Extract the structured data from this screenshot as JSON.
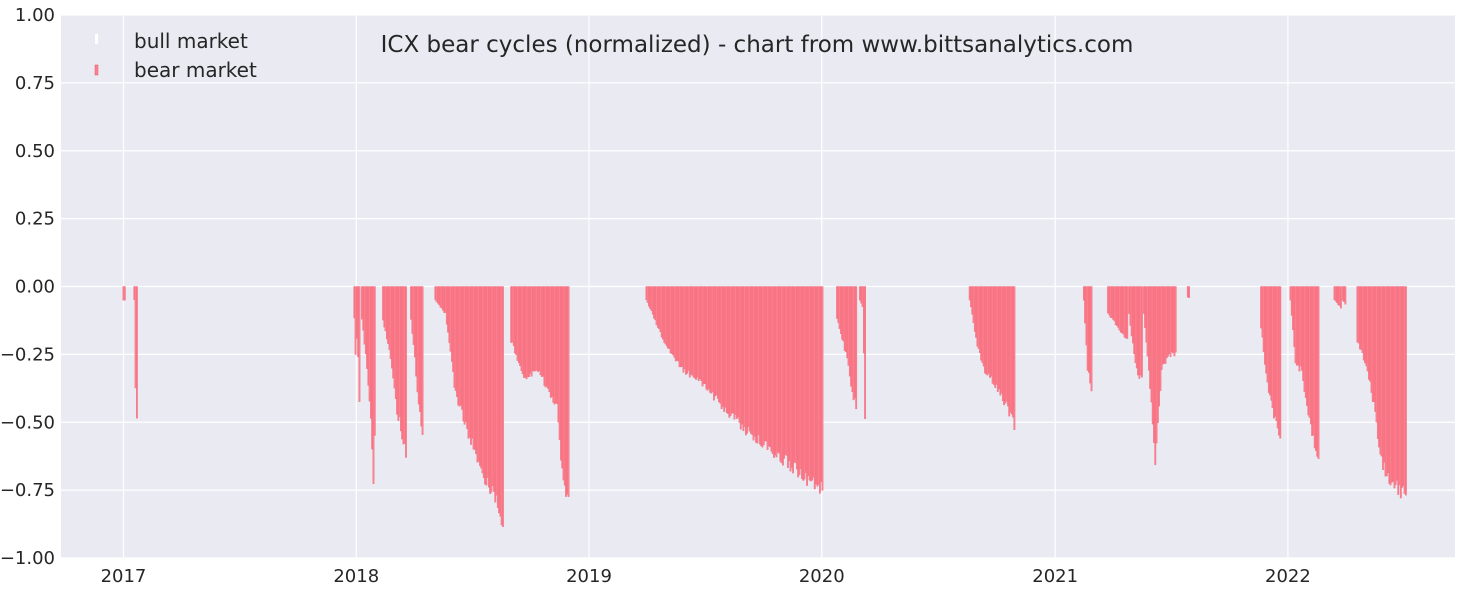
{
  "chart_data": {
    "type": "bar",
    "title": "ICX bear cycles (normalized)  - chart from www.bittsanalytics.com",
    "xlabel": "",
    "ylabel": "",
    "x_axis_type": "date",
    "xlim": [
      "2016-09-25",
      "2022-09-20"
    ],
    "ylim": [
      -1.0,
      1.0
    ],
    "y_ticks": [
      -1.0,
      -0.75,
      -0.5,
      -0.25,
      0.0,
      0.25,
      0.5,
      0.75,
      1.0
    ],
    "y_tick_labels": [
      "−1.00",
      "−0.75",
      "−0.50",
      "−0.25",
      "0.00",
      "0.25",
      "0.50",
      "0.75",
      "1.00"
    ],
    "x_ticks": [
      "2017-01-01",
      "2018-01-01",
      "2019-01-01",
      "2020-01-01",
      "2021-01-01",
      "2022-01-01"
    ],
    "x_tick_labels": [
      "2017",
      "2018",
      "2019",
      "2020",
      "2021",
      "2022"
    ],
    "grid": true,
    "legend_position": "top-left",
    "background": "#eaeaf2",
    "series": [
      {
        "name": "bull market",
        "color": "#ffffff",
        "values": [],
        "segments": []
      },
      {
        "name": "bear market",
        "color": "#ff7f8e",
        "edge_color": "#e05a6c",
        "segments": [
          {
            "start": "2017-01-01",
            "end": "2017-01-03",
            "points": [
              [
                0.0,
                -0.05
              ],
              [
                1.0,
                -0.05
              ]
            ]
          },
          {
            "start": "2017-01-18",
            "end": "2017-01-22",
            "points": [
              [
                0.0,
                -0.05
              ],
              [
                0.3,
                -0.3
              ],
              [
                0.7,
                -0.42
              ],
              [
                1.0,
                -0.47
              ]
            ]
          },
          {
            "start": "2017-12-29",
            "end": "2018-01-06",
            "points": [
              [
                0.0,
                -0.12
              ],
              [
                0.3,
                -0.28
              ],
              [
                0.6,
                -0.15
              ],
              [
                1.0,
                -0.42
              ]
            ]
          },
          {
            "start": "2018-01-10",
            "end": "2018-01-31",
            "points": [
              [
                0.0,
                -0.12
              ],
              [
                0.4,
                -0.3
              ],
              [
                0.7,
                -0.5
              ],
              [
                0.85,
                -0.72
              ],
              [
                1.0,
                -0.5
              ]
            ]
          },
          {
            "start": "2018-02-12",
            "end": "2018-03-20",
            "points": [
              [
                0.0,
                -0.12
              ],
              [
                0.3,
                -0.25
              ],
              [
                0.6,
                -0.45
              ],
              [
                0.85,
                -0.55
              ],
              [
                1.0,
                -0.63
              ]
            ]
          },
          {
            "start": "2018-03-28",
            "end": "2018-04-15",
            "points": [
              [
                0.0,
                -0.12
              ],
              [
                0.4,
                -0.3
              ],
              [
                0.7,
                -0.45
              ],
              [
                1.0,
                -0.55
              ]
            ]
          },
          {
            "start": "2018-05-05",
            "end": "2018-08-20",
            "points": [
              [
                0.0,
                -0.05
              ],
              [
                0.15,
                -0.1
              ],
              [
                0.3,
                -0.4
              ],
              [
                0.5,
                -0.55
              ],
              [
                0.7,
                -0.7
              ],
              [
                0.85,
                -0.75
              ],
              [
                0.95,
                -0.85
              ],
              [
                1.0,
                -0.9
              ]
            ]
          },
          {
            "start": "2018-09-01",
            "end": "2018-11-30",
            "points": [
              [
                0.0,
                -0.2
              ],
              [
                0.25,
                -0.35
              ],
              [
                0.45,
                -0.3
              ],
              [
                0.65,
                -0.38
              ],
              [
                0.8,
                -0.45
              ],
              [
                0.9,
                -0.72
              ],
              [
                1.0,
                -0.8
              ]
            ]
          },
          {
            "start": "2019-04-01",
            "end": "2020-01-02",
            "points": [
              [
                0.0,
                -0.05
              ],
              [
                0.1,
                -0.2
              ],
              [
                0.2,
                -0.3
              ],
              [
                0.3,
                -0.35
              ],
              [
                0.45,
                -0.45
              ],
              [
                0.6,
                -0.55
              ],
              [
                0.75,
                -0.62
              ],
              [
                0.9,
                -0.7
              ],
              [
                1.0,
                -0.75
              ]
            ]
          },
          {
            "start": "2020-01-25",
            "end": "2020-02-25",
            "points": [
              [
                0.0,
                -0.12
              ],
              [
                0.3,
                -0.2
              ],
              [
                0.6,
                -0.3
              ],
              [
                0.8,
                -0.4
              ],
              [
                1.0,
                -0.45
              ]
            ]
          },
          {
            "start": "2020-03-01",
            "end": "2020-03-10",
            "points": [
              [
                0.0,
                -0.05
              ],
              [
                0.5,
                -0.08
              ],
              [
                1.0,
                -0.58
              ]
            ]
          },
          {
            "start": "2020-08-20",
            "end": "2020-10-30",
            "points": [
              [
                0.0,
                -0.05
              ],
              [
                0.15,
                -0.2
              ],
              [
                0.3,
                -0.3
              ],
              [
                0.5,
                -0.35
              ],
              [
                0.7,
                -0.4
              ],
              [
                0.85,
                -0.45
              ],
              [
                1.0,
                -0.52
              ]
            ]
          },
          {
            "start": "2021-02-15",
            "end": "2021-02-27",
            "points": [
              [
                0.0,
                -0.05
              ],
              [
                0.5,
                -0.3
              ],
              [
                1.0,
                -0.38
              ]
            ]
          },
          {
            "start": "2021-03-25",
            "end": "2021-04-25",
            "points": [
              [
                0.0,
                -0.1
              ],
              [
                0.5,
                -0.15
              ],
              [
                1.0,
                -0.2
              ]
            ]
          },
          {
            "start": "2021-04-27",
            "end": "2021-05-18",
            "points": [
              [
                0.0,
                -0.1
              ],
              [
                0.5,
                -0.3
              ],
              [
                1.0,
                -0.35
              ]
            ]
          },
          {
            "start": "2021-05-20",
            "end": "2021-07-10",
            "points": [
              [
                0.0,
                -0.1
              ],
              [
                0.25,
                -0.45
              ],
              [
                0.35,
                -0.65
              ],
              [
                0.55,
                -0.3
              ],
              [
                0.8,
                -0.25
              ],
              [
                1.0,
                -0.25
              ]
            ]
          },
          {
            "start": "2021-07-28",
            "end": "2021-07-30",
            "points": [
              [
                0.0,
                -0.04
              ],
              [
                1.0,
                -0.04
              ]
            ]
          },
          {
            "start": "2021-11-20",
            "end": "2021-12-20",
            "points": [
              [
                0.0,
                -0.15
              ],
              [
                0.3,
                -0.35
              ],
              [
                0.6,
                -0.45
              ],
              [
                1.0,
                -0.57
              ]
            ]
          },
          {
            "start": "2022-01-05",
            "end": "2022-02-18",
            "points": [
              [
                0.0,
                -0.05
              ],
              [
                0.2,
                -0.3
              ],
              [
                0.4,
                -0.3
              ],
              [
                0.6,
                -0.45
              ],
              [
                0.8,
                -0.55
              ],
              [
                1.0,
                -0.62
              ]
            ]
          },
          {
            "start": "2022-03-15",
            "end": "2022-03-25",
            "points": [
              [
                0.0,
                -0.05
              ],
              [
                1.0,
                -0.08
              ]
            ]
          },
          {
            "start": "2022-03-28",
            "end": "2022-04-02",
            "points": [
              [
                0.0,
                -0.05
              ],
              [
                1.0,
                -0.07
              ]
            ]
          },
          {
            "start": "2022-04-20",
            "end": "2022-07-05",
            "points": [
              [
                0.0,
                -0.2
              ],
              [
                0.1,
                -0.25
              ],
              [
                0.2,
                -0.3
              ],
              [
                0.35,
                -0.45
              ],
              [
                0.5,
                -0.65
              ],
              [
                0.65,
                -0.7
              ],
              [
                0.75,
                -0.72
              ],
              [
                0.85,
                -0.75
              ],
              [
                1.0,
                -0.75
              ]
            ]
          }
        ]
      }
    ]
  }
}
